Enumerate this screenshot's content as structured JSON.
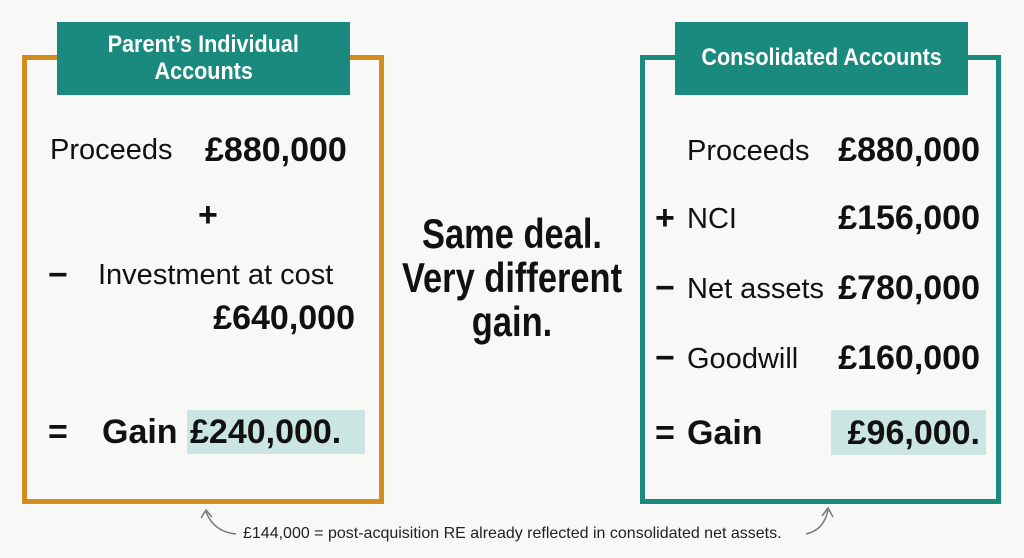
{
  "left": {
    "title": [
      "Parent’s Individual",
      "Accounts"
    ],
    "proceeds_label": "Proceeds",
    "proceeds_amount": "£880,000",
    "plus_sign": "+",
    "minus_sign": "−",
    "cost_label": "Investment at cost",
    "cost_amount": "£640,000",
    "equals_sign": "=",
    "gain_label": "Gain",
    "gain_amount": "£240,000."
  },
  "center": [
    "Same deal.",
    "Very different",
    "gain."
  ],
  "right": {
    "title": "Consolidated Accounts",
    "rows": [
      {
        "sign": "",
        "label": "Proceeds",
        "amount": "£880,000"
      },
      {
        "sign": "+",
        "label": "NCI",
        "amount": "£156,000"
      },
      {
        "sign": "−",
        "label": "Net assets",
        "amount": "£780,000"
      },
      {
        "sign": "−",
        "label": "Goodwill",
        "amount": "£160,000"
      }
    ],
    "equals_sign": "=",
    "gain_label": "Gain",
    "gain_amount": "£96,000."
  },
  "note": "£144,000 = post-acquisition RE already reflected in consolidated net assets."
}
